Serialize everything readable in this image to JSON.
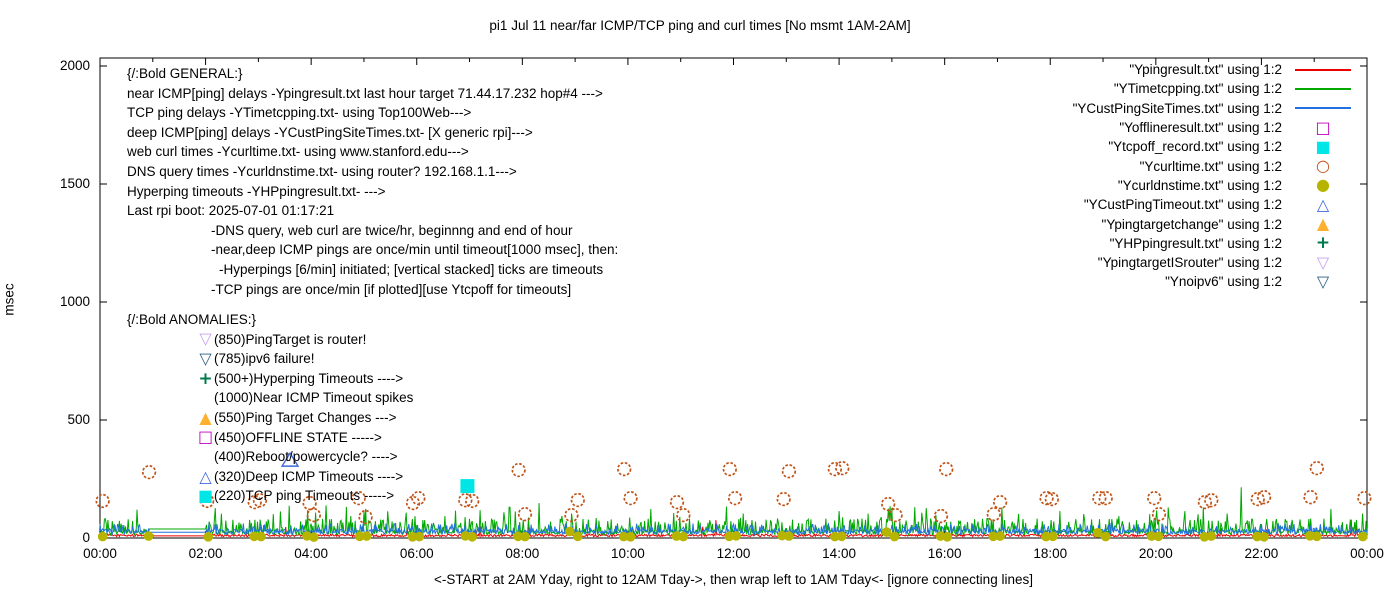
{
  "title": "pi1 Jul 11  near/far ICMP/TCP ping and curl times [No msmt 1AM-2AM]",
  "y_axis_title": "msec",
  "x_axis_caption": "<-START at 2AM Yday, right to 12AM Tday->, then wrap left to 1AM Tday<- [ignore connecting lines]",
  "legend": [
    {
      "label": "\"Ypingresult.txt\" using 1:2",
      "swatch": "line",
      "color": "#ee0000"
    },
    {
      "label": "\"YTimetcpping.txt\" using 1:2",
      "swatch": "line",
      "color": "#00a800"
    },
    {
      "label": "\"YCustPingSiteTimes.txt\" using 1:2",
      "swatch": "line",
      "color": "#2171de"
    },
    {
      "label": "\"Yofflineresult.txt\" using 1:2",
      "swatch": "open-square",
      "color": "#bf00bf"
    },
    {
      "label": "\"Ytcpoff_record.txt\" using 1:2",
      "swatch": "filled-square",
      "color": "#00e6e6"
    },
    {
      "label": "\"Ycurltime.txt\" using 1:2",
      "swatch": "open-circle",
      "color": "#c05418"
    },
    {
      "label": "\"Ycurldnstime.txt\" using 1:2",
      "swatch": "filled-circle",
      "color": "#b7b400"
    },
    {
      "label": "\"YCustPingTimeout.txt\" using 1:2",
      "swatch": "open-triangle-up",
      "color": "#4169e1"
    },
    {
      "label": "\"Ypingtargetchange\" using 1:2",
      "swatch": "filled-triangle-up",
      "color": "#ffb02e"
    },
    {
      "label": "\"YHPpingresult.txt\" using 1:2",
      "swatch": "plus",
      "color": "#007a4d"
    },
    {
      "label": "\"YpingtargetISrouter\" using 1:2",
      "swatch": "open-triangle-down",
      "color": "#c9a0f2"
    },
    {
      "label": "\"Ynoipv6\" using 1:2",
      "swatch": "open-triangle-down",
      "color": "#2e5f80"
    }
  ],
  "general_block": {
    "lines": [
      {
        "text": "{/:Bold GENERAL:}",
        "indent": 0
      },
      {
        "text": "near ICMP[ping] delays -Ypingresult.txt last hour target 71.44.17.232 hop#4 --->",
        "indent": 0
      },
      {
        "text": "TCP ping delays -YTimetcpping.txt- using Top100Web--->",
        "indent": 0
      },
      {
        "text": "deep ICMP[ping] delays -YCustPingSiteTimes.txt- [X generic rpi]--->",
        "indent": 0
      },
      {
        "text": "web curl times -Ycurltime.txt- using www.stanford.edu--->",
        "indent": 0
      },
      {
        "text": "DNS query times -Ycurldnstime.txt- using router? 192.168.1.1--->",
        "indent": 0
      },
      {
        "text": "Hyperping timeouts -YHPpingresult.txt- --->",
        "indent": 0
      },
      {
        "text": "Last rpi boot: 2025-07-01 01:17:21",
        "indent": 0
      },
      {
        "text": "-DNS query, web curl are twice/hr, beginnng and end of hour",
        "indent": 1
      },
      {
        "text": "-near,deep ICMP pings are once/min until timeout[1000 msec], then:",
        "indent": 1
      },
      {
        "text": "-Hyperpings [6/min] initiated; [vertical stacked] ticks are timeouts",
        "indent": 2
      },
      {
        "text": "-TCP pings are once/min [if plotted][use Ytcpoff for timeouts]",
        "indent": 1
      }
    ]
  },
  "anomalies_block": {
    "header": "{/:Bold ANOMALIES:}",
    "items": [
      {
        "marker": "open-triangle-down",
        "color": "#c9a0f2",
        "text": "(850)PingTarget is router!"
      },
      {
        "marker": "open-triangle-down",
        "color": "#2e5f80",
        "text": "(785)ipv6 failure!"
      },
      {
        "marker": "plus",
        "color": "#007a4d",
        "text": "(500+)Hyperping Timeouts ---->"
      },
      {
        "marker": "none",
        "color": "",
        "text": "(1000)Near ICMP Timeout spikes"
      },
      {
        "marker": "filled-triangle-up",
        "color": "#ffb02e",
        "text": "(550)Ping Target Changes --->"
      },
      {
        "marker": "open-square",
        "color": "#bf00bf",
        "text": "(450)OFFLINE STATE ----->"
      },
      {
        "marker": "none",
        "color": "",
        "text": "(400)Reboot/powercycle? ---->"
      },
      {
        "marker": "open-triangle-up",
        "color": "#4169e1",
        "text": "(320)Deep ICMP Timeouts ---->"
      },
      {
        "marker": "filled-square",
        "color": "#00e6e6",
        "text": "(220)TCP ping Timeouts ----->"
      }
    ]
  },
  "chart_data": {
    "type": "line",
    "title": "pi1 Jul 11  near/far ICMP/TCP ping and curl times [No msmt 1AM-2AM]",
    "xlabel": "<-START at 2AM Yday, right to 12AM Tday->, then wrap left to 1AM Tday<- [ignore connecting lines]",
    "ylabel": "msec",
    "x_range_hours": [
      0,
      24
    ],
    "ylim": [
      0,
      2000
    ],
    "x_tick_labels": [
      "00:00",
      "02:00",
      "04:00",
      "06:00",
      "08:00",
      "10:00",
      "12:00",
      "14:00",
      "16:00",
      "18:00",
      "20:00",
      "22:00",
      "00:00"
    ],
    "x_minor_tick_every_hours": 1,
    "y_ticks": [
      0,
      500,
      1000,
      1500,
      2000
    ],
    "grid": "off",
    "legend_position": "top-right-outside-style-gnuplot",
    "no_measurement_gap_hours": [
      0.93,
      2.0
    ],
    "line_series": [
      {
        "name": "Ypingresult.txt near ICMP ping delay",
        "color": "#ee0000",
        "baseline_msec": 10,
        "noise_max_msec": 18,
        "gap_value_msec": 9,
        "spikes": [
          [
            11.67,
            76
          ],
          [
            23.7,
            78
          ]
        ]
      },
      {
        "name": "YTimetcpping.txt TCP ping delay",
        "color": "#00a800",
        "baseline_msec": 25,
        "noise_max_msec": 140,
        "gap_value_msec": 38,
        "spikes": [
          [
            21.62,
            215
          ],
          [
            8.32,
            148
          ],
          [
            4.28,
            138
          ]
        ]
      },
      {
        "name": "YCustPingSiteTimes.txt deep ICMP ping delay",
        "color": "#2171de",
        "baseline_msec": 28,
        "noise_max_msec": 62,
        "gap_value_msec": 24,
        "spikes": []
      }
    ],
    "scatter_series": [
      {
        "name": "Ycurltime.txt web curl times",
        "marker": "open-circle",
        "color": "#c05418",
        "points_hour_msec": [
          [
            0.05,
            157
          ],
          [
            0.93,
            279
          ],
          [
            2.03,
            157
          ],
          [
            2.93,
            152
          ],
          [
            3.03,
            160
          ],
          [
            3.97,
            148
          ],
          [
            4.05,
            97
          ],
          [
            4.9,
            169
          ],
          [
            5.03,
            89
          ],
          [
            5.93,
            148
          ],
          [
            6.03,
            169
          ],
          [
            6.92,
            160
          ],
          [
            7.05,
            157
          ],
          [
            7.93,
            288
          ],
          [
            8.05,
            101
          ],
          [
            8.93,
            97
          ],
          [
            9.05,
            161
          ],
          [
            9.93,
            292
          ],
          [
            10.05,
            169
          ],
          [
            10.93,
            152
          ],
          [
            11.05,
            97
          ],
          [
            11.93,
            292
          ],
          [
            12.03,
            169
          ],
          [
            12.95,
            165
          ],
          [
            13.05,
            283
          ],
          [
            13.92,
            292
          ],
          [
            14.06,
            296
          ],
          [
            14.93,
            144
          ],
          [
            15.07,
            97
          ],
          [
            15.93,
            93
          ],
          [
            16.03,
            292
          ],
          [
            16.93,
            101
          ],
          [
            17.05,
            152
          ],
          [
            17.93,
            169
          ],
          [
            18.03,
            165
          ],
          [
            18.93,
            169
          ],
          [
            19.05,
            169
          ],
          [
            19.97,
            169
          ],
          [
            20.06,
            101
          ],
          [
            20.93,
            152
          ],
          [
            21.05,
            160
          ],
          [
            21.93,
            165
          ],
          [
            22.05,
            173
          ],
          [
            22.93,
            173
          ],
          [
            23.05,
            296
          ],
          [
            23.95,
            169
          ]
        ]
      },
      {
        "name": "Ycurldnstime.txt DNS query times",
        "marker": "filled-circle",
        "color": "#b7b400",
        "points_hour_msec": [
          [
            0.05,
            6
          ],
          [
            0.92,
            8
          ],
          [
            2.05,
            5
          ],
          [
            2.92,
            7
          ],
          [
            3.05,
            6
          ],
          [
            3.92,
            9
          ],
          [
            4.05,
            4
          ],
          [
            4.92,
            7
          ],
          [
            5.05,
            8
          ],
          [
            5.92,
            5
          ],
          [
            6.05,
            6
          ],
          [
            6.92,
            9
          ],
          [
            7.05,
            5
          ],
          [
            7.92,
            7
          ],
          [
            8.05,
            6
          ],
          [
            8.9,
            28
          ],
          [
            9.05,
            7
          ],
          [
            9.92,
            6
          ],
          [
            10.05,
            5
          ],
          [
            10.92,
            8
          ],
          [
            11.05,
            6
          ],
          [
            11.92,
            7
          ],
          [
            12.05,
            9
          ],
          [
            12.92,
            10
          ],
          [
            13.05,
            8
          ],
          [
            13.92,
            6
          ],
          [
            14.05,
            7
          ],
          [
            14.9,
            25
          ],
          [
            15.05,
            6
          ],
          [
            15.92,
            8
          ],
          [
            16.05,
            5
          ],
          [
            16.92,
            7
          ],
          [
            17.05,
            8
          ],
          [
            17.92,
            6
          ],
          [
            18.05,
            7
          ],
          [
            18.9,
            22
          ],
          [
            19.05,
            6
          ],
          [
            19.92,
            8
          ],
          [
            20.05,
            7
          ],
          [
            20.92,
            5
          ],
          [
            21.05,
            8
          ],
          [
            21.92,
            6
          ],
          [
            22.05,
            5
          ],
          [
            22.92,
            9
          ],
          [
            23.05,
            7
          ],
          [
            23.92,
            6
          ]
        ]
      },
      {
        "name": "Ytcpoff_record.txt TCP ping timeout",
        "marker": "filled-square",
        "color": "#00e6e6",
        "points_hour_msec": [
          [
            6.96,
            220
          ]
        ]
      },
      {
        "name": "YCustPingTimeout.txt deep ICMP timeout",
        "marker": "open-triangle-up",
        "color": "#4169e1",
        "points_hour_msec": [
          [
            3.6,
            330
          ]
        ]
      }
    ]
  }
}
